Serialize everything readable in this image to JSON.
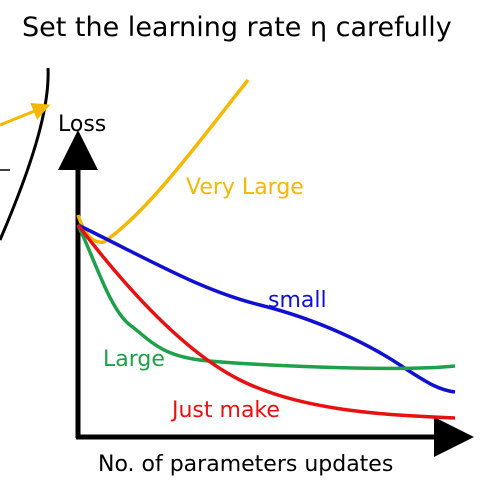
{
  "title": "Set the learning rate η carefully",
  "axes": {
    "y_label": "Loss",
    "x_label": "No. of parameters updates"
  },
  "curves": [
    {
      "label": "Very Large"
    },
    {
      "label": "small"
    },
    {
      "label": "Large"
    },
    {
      "label": "Just make"
    }
  ]
}
